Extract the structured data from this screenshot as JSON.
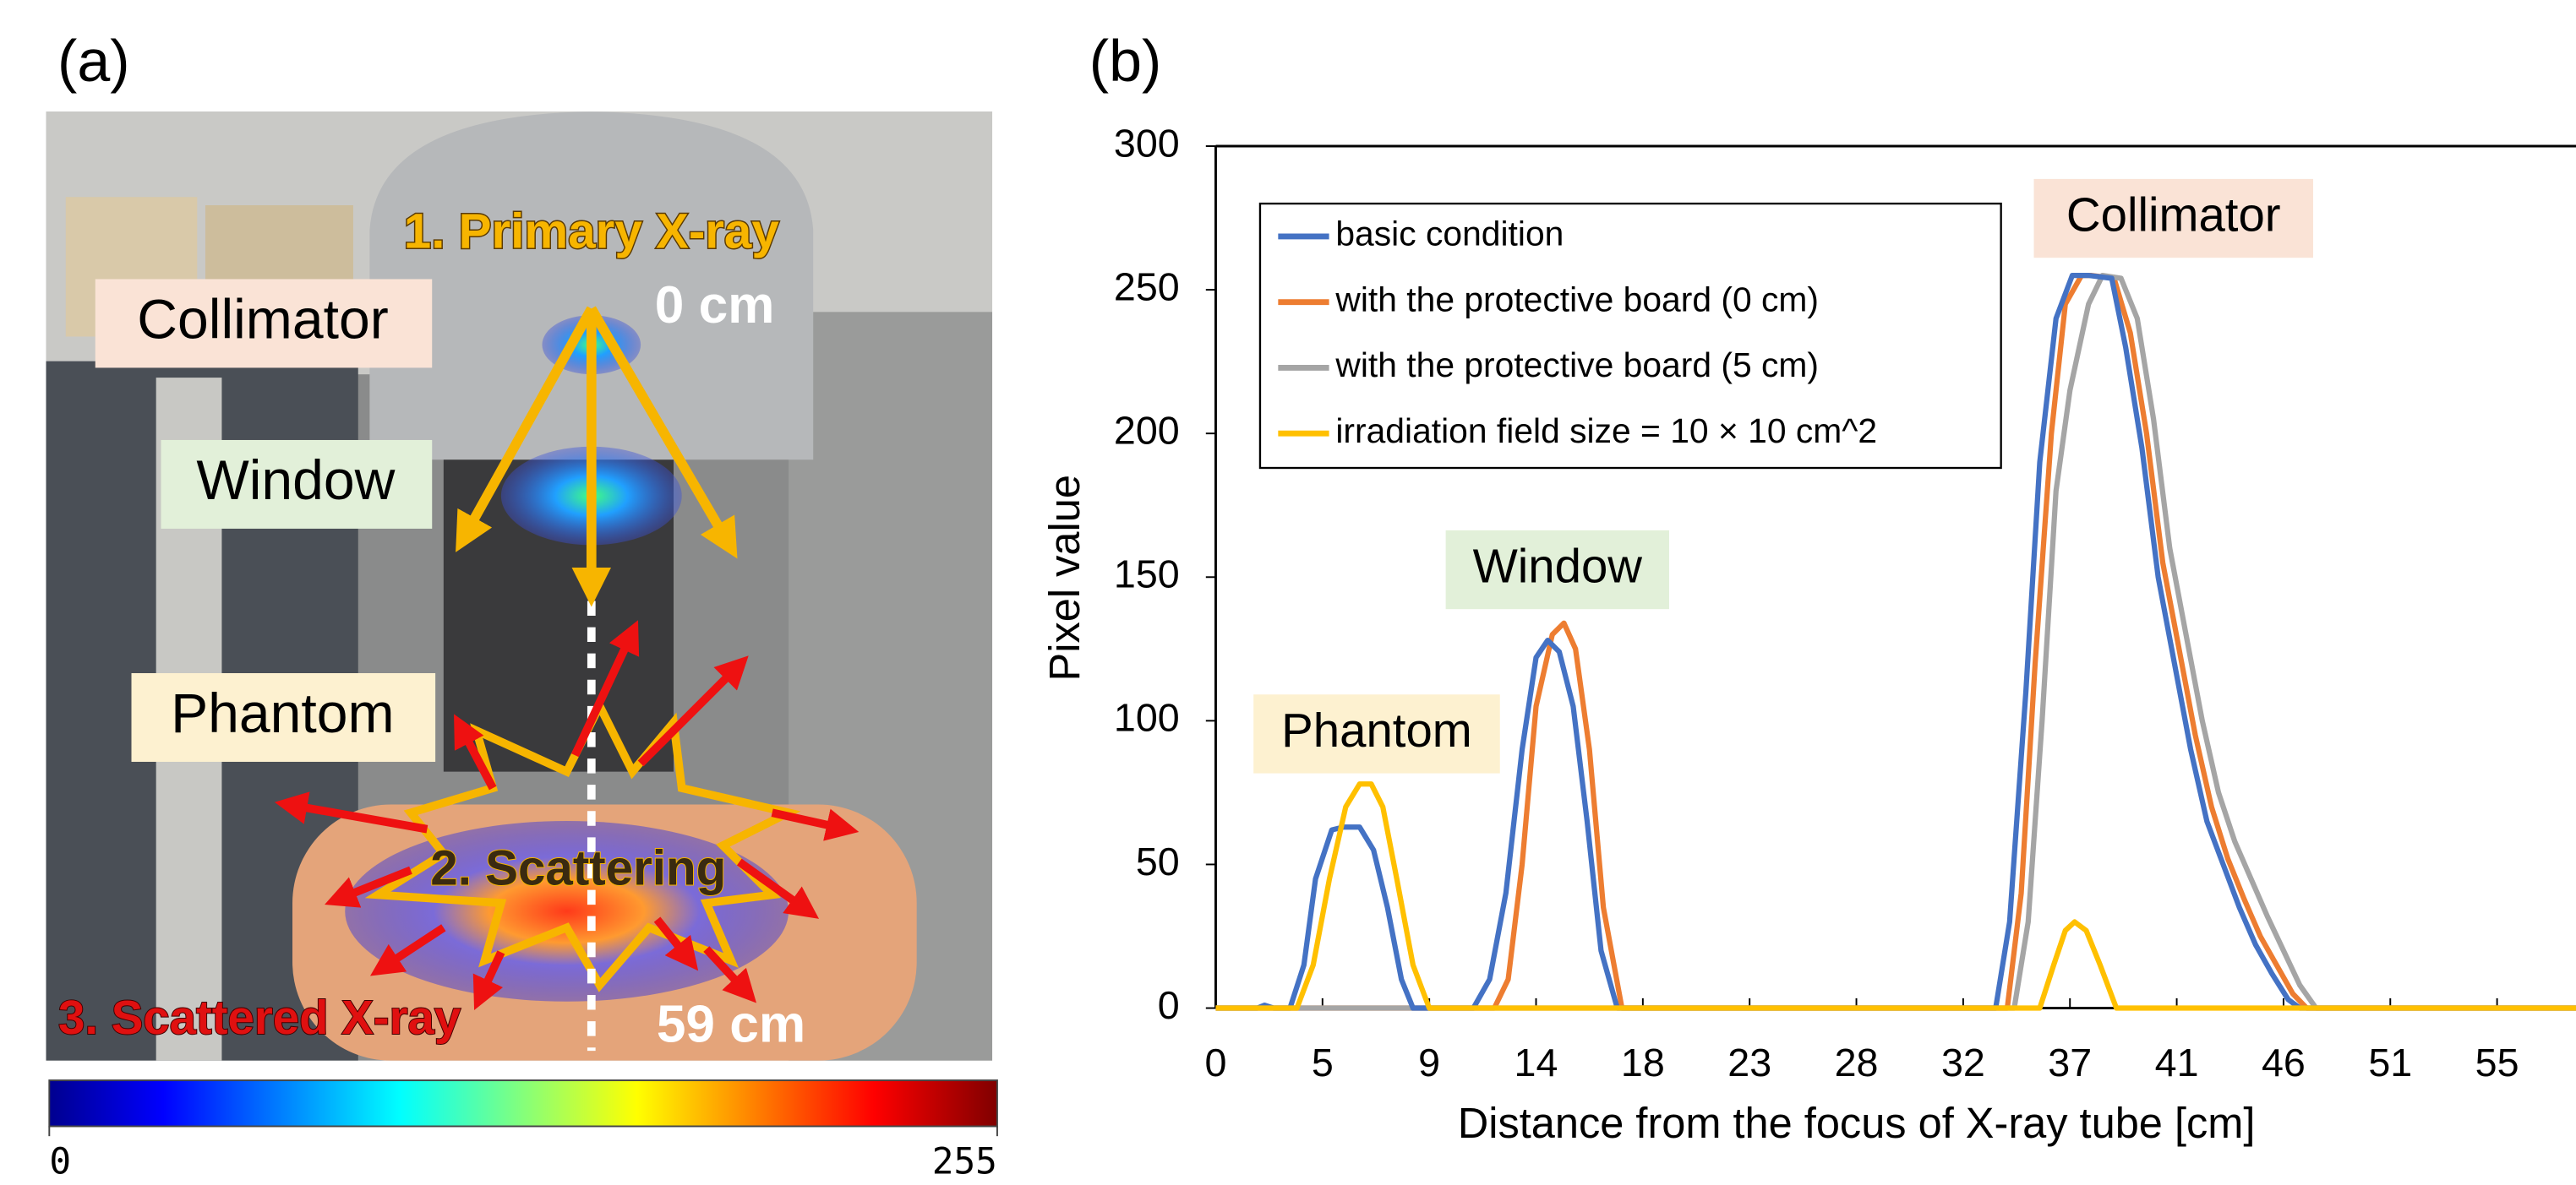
{
  "panel_a": {
    "label": "(a)",
    "annotations": [
      "1. Primary X-ray",
      "0 cm",
      "Collimator",
      "Window",
      "Phantom",
      "2. Scattering",
      "3. Scattered X-ray",
      "59 cm"
    ],
    "colorbar": {
      "lim": [
        0,
        255
      ],
      "ticks": [
        0,
        255
      ]
    }
  },
  "chart_data": {
    "type": "line",
    "label": "(b)",
    "x_label": "Distance from the focus of X-ray tube [cm]",
    "y_label": "Pixel value",
    "annotations": [
      "Collimator",
      "Window",
      "Phantom"
    ],
    "xlim": [
      0,
      58.6
    ],
    "ylim": [
      0,
      300
    ],
    "xticks": [
      0,
      {
        "value": 4.6,
        "label": "5"
      },
      {
        "value": 9.2,
        "label": "9"
      },
      {
        "value": 13.8,
        "label": "14"
      },
      {
        "value": 18.4,
        "label": "18"
      },
      23,
      {
        "value": 27.6,
        "label": "28"
      },
      {
        "value": 32.2,
        "label": "32"
      },
      {
        "value": 36.8,
        "label": "37"
      },
      {
        "value": 41.4,
        "label": "41"
      },
      46,
      {
        "value": 50.6,
        "label": "51"
      },
      {
        "value": 55.2,
        "label": "55"
      }
    ],
    "yticks": [
      0,
      50,
      100,
      150,
      200,
      250,
      300
    ],
    "legend": "upper left",
    "series": [
      {
        "name": "basic condition",
        "color": "#4472c4",
        "x": [
          0,
          1.8,
          2.1,
          2.5,
          3.2,
          3.8,
          4.3,
          5.0,
          5.5,
          6.2,
          6.8,
          7.4,
          8.0,
          8.5,
          11.1,
          11.8,
          12.5,
          13.2,
          13.8,
          14.3,
          14.8,
          15.4,
          16.0,
          16.6,
          17.3,
          33.6,
          34.2,
          34.9,
          35.5,
          36.2,
          36.9,
          37.6,
          38.6,
          39.2,
          39.9,
          40.6,
          41.3,
          42.0,
          42.7,
          43.4,
          44.1,
          44.8,
          45.5,
          46.2,
          46.7,
          58.6
        ],
        "values": [
          0,
          0,
          1,
          0,
          0,
          15,
          45,
          62,
          63,
          63,
          55,
          35,
          10,
          0,
          0,
          10,
          40,
          90,
          122,
          128,
          124,
          105,
          65,
          20,
          0,
          0,
          30,
          110,
          190,
          240,
          255,
          255,
          254,
          230,
          195,
          150,
          120,
          90,
          65,
          50,
          35,
          22,
          12,
          3,
          0,
          0
        ]
      },
      {
        "name": "with the protective board (0 cm)",
        "color": "#ed7d31",
        "x": [
          0,
          12.0,
          12.6,
          13.2,
          13.8,
          14.5,
          15.0,
          15.5,
          16.1,
          16.7,
          17.5,
          34.1,
          34.7,
          35.3,
          36.0,
          36.6,
          37.3,
          37.7,
          38.7,
          39.4,
          40.1,
          40.8,
          41.5,
          42.2,
          42.9,
          43.6,
          44.3,
          45.0,
          45.7,
          46.4,
          47.0,
          58.6
        ],
        "values": [
          0,
          0,
          10,
          50,
          105,
          130,
          134,
          125,
          90,
          35,
          0,
          0,
          40,
          120,
          200,
          245,
          255,
          255,
          254,
          235,
          200,
          155,
          125,
          95,
          70,
          52,
          38,
          25,
          15,
          5,
          0,
          0
        ]
      },
      {
        "name": "with the protective board (5 cm)",
        "color": "#a5a5a5",
        "x": [
          0,
          34.4,
          35.0,
          35.6,
          36.2,
          36.8,
          37.6,
          38.2,
          39.0,
          39.7,
          40.4,
          41.1,
          41.8,
          42.5,
          43.2,
          43.9,
          44.6,
          45.3,
          46.0,
          46.7,
          47.4,
          58.6
        ],
        "values": [
          0,
          0,
          30,
          100,
          180,
          215,
          245,
          255,
          254,
          240,
          205,
          160,
          130,
          100,
          75,
          58,
          45,
          32,
          20,
          8,
          0,
          0
        ]
      },
      {
        "name": "irradiation field size = 10 × 10 cm^2",
        "color": "#ffc000",
        "x": [
          0,
          3.5,
          4.2,
          4.9,
          5.6,
          6.2,
          6.7,
          7.2,
          7.8,
          8.5,
          9.2,
          35.5,
          36.1,
          36.6,
          37.0,
          37.5,
          38.1,
          38.8,
          58.6
        ],
        "values": [
          0,
          0,
          15,
          45,
          70,
          78,
          78,
          70,
          45,
          15,
          0,
          0,
          15,
          27,
          30,
          27,
          15,
          0,
          0
        ]
      }
    ]
  }
}
